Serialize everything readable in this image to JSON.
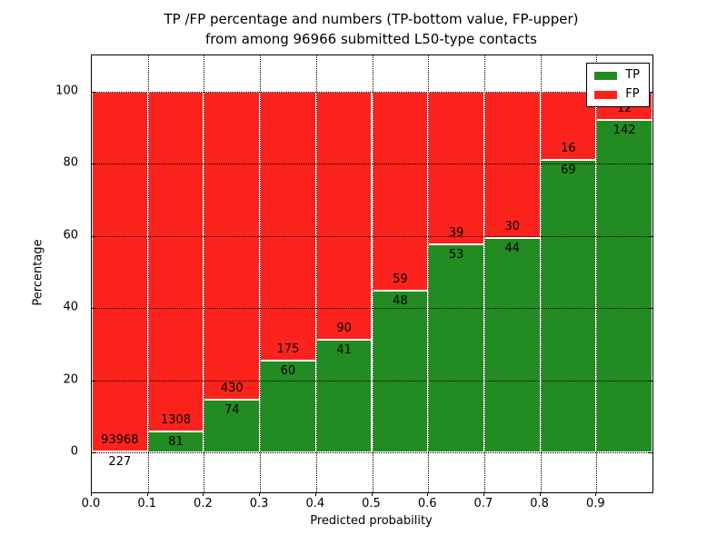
{
  "chart_data": {
    "type": "bar",
    "stacked": true,
    "normalized_to_percent": true,
    "title_lines": [
      "TP /FP percentage and numbers (TP-bottom value, FP-upper)",
      "from among 96966 submitted L50-type contacts"
    ],
    "xlabel": "Predicted probability",
    "ylabel": "Percentage",
    "bins": [
      0.0,
      0.1,
      0.2,
      0.3,
      0.4,
      0.5,
      0.6,
      0.7,
      0.8,
      0.9
    ],
    "bin_width": 0.1,
    "series": [
      {
        "name": "TP",
        "color": "#228b22",
        "values": [
          227,
          81,
          74,
          60,
          41,
          48,
          53,
          44,
          69,
          142
        ]
      },
      {
        "name": "FP",
        "color": "#fb231c",
        "values": [
          93968,
          1308,
          430,
          175,
          90,
          59,
          39,
          30,
          16,
          12
        ]
      }
    ],
    "stack_total_percent": 100,
    "xlim": [
      0.0,
      1.0
    ],
    "ylim": [
      -11,
      110
    ],
    "xticks": [
      "0.0",
      "0.1",
      "0.2",
      "0.3",
      "0.4",
      "0.5",
      "0.6",
      "0.7",
      "0.8",
      "0.9"
    ],
    "xtick_positions": [
      0.0,
      0.1,
      0.2,
      0.3,
      0.4,
      0.5,
      0.6,
      0.7,
      0.8,
      0.9
    ],
    "yticks": [
      "0",
      "20",
      "40",
      "60",
      "80",
      "100"
    ],
    "ytick_positions": [
      0,
      20,
      40,
      60,
      80,
      100
    ],
    "grid": true,
    "grid_style": "dotted",
    "axisbelow": false,
    "legend": {
      "position": "upper right",
      "entries": [
        "TP",
        "FP"
      ]
    },
    "colors": {
      "tp": "#228b22",
      "fp": "#fb231c",
      "text": "#000000",
      "background": "#ffffff",
      "edge": "#ffffff"
    }
  }
}
